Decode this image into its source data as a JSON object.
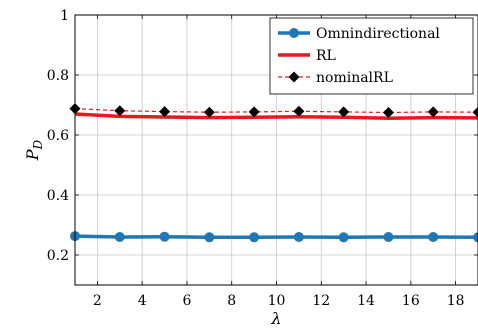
{
  "chart_data": {
    "type": "line",
    "xlabel": "λ",
    "ylabel_main": "P",
    "ylabel_sub": "D",
    "xlim": [
      1,
      19
    ],
    "ylim": [
      0.1,
      1.0
    ],
    "xticks": [
      2,
      4,
      6,
      8,
      10,
      12,
      14,
      16,
      18
    ],
    "yticks": [
      0.2,
      0.4,
      0.6,
      0.8,
      1.0
    ],
    "ytick_labels": [
      "0.2",
      "0.4",
      "0.6",
      "0.8",
      "1"
    ],
    "grid": true,
    "legend_position": "top-right",
    "x": [
      1,
      3,
      5,
      7,
      9,
      11,
      13,
      15,
      17,
      19
    ],
    "series": [
      {
        "name": "Omnindirectional",
        "color": "#1f77b4",
        "style": "solid-thick-circle",
        "values": [
          0.263,
          0.26,
          0.261,
          0.259,
          0.259,
          0.26,
          0.259,
          0.26,
          0.26,
          0.259
        ]
      },
      {
        "name": "RL",
        "color": "#e41a1c",
        "style": "solid-thick",
        "values": [
          0.67,
          0.662,
          0.66,
          0.658,
          0.659,
          0.661,
          0.659,
          0.656,
          0.658,
          0.657
        ]
      },
      {
        "name": "nominalRL",
        "color": "#e41a1c",
        "marker_color": "#000000",
        "style": "dashed-diamond",
        "values": [
          0.688,
          0.681,
          0.678,
          0.676,
          0.677,
          0.679,
          0.677,
          0.675,
          0.677,
          0.676
        ]
      }
    ]
  }
}
